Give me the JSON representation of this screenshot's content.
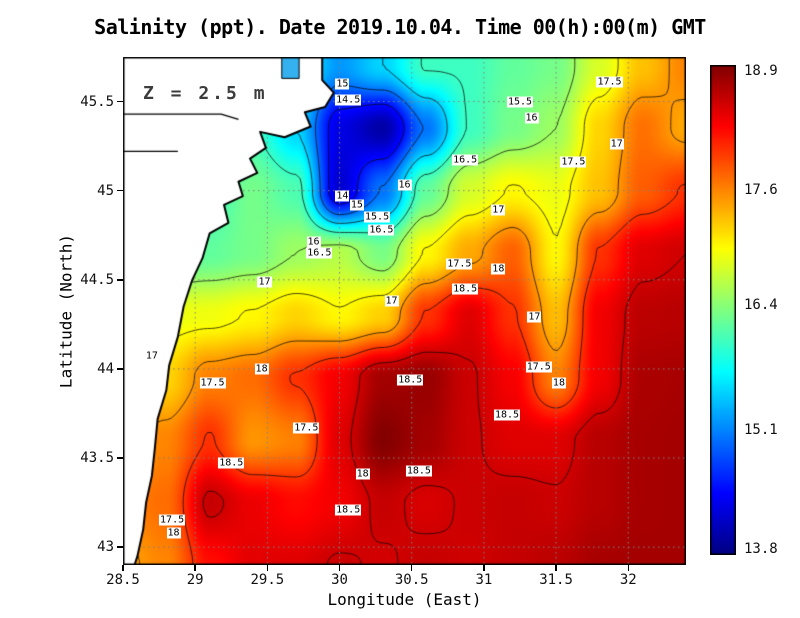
{
  "figure": {
    "title": "Salinity (ppt). Date 2019.10.04. Time 00(h):00(m) GMT",
    "annotation": "Z = 2.5 m",
    "xlabel": "Longitude (East)",
    "ylabel": "Latitude (North)"
  },
  "chart_data": {
    "type": "heatmap",
    "title": "Salinity (ppt). Date 2019.10.04. Time 00(h):00(m) GMT",
    "variable": "Salinity",
    "units": "ppt",
    "date": "2019.10.04",
    "time_gmt": "00(h):00(m)",
    "depth_label": "Z = 2.5 m",
    "xlabel": "Longitude (East)",
    "ylabel": "Latitude (North)",
    "x_range": [
      28.5,
      32.4
    ],
    "y_range": [
      42.9,
      45.75
    ],
    "x_ticks": [
      "28.5",
      "29",
      "29.5",
      "30",
      "30.5",
      "31",
      "31.5",
      "32"
    ],
    "y_ticks": [
      "43",
      "43.5",
      "44",
      "44.5",
      "45",
      "45.5"
    ],
    "grid_on": true,
    "colorbar": {
      "min": 13.8,
      "max": 18.9,
      "tick_labels": [
        "18.9",
        "17.6",
        "16.4",
        "15.1",
        "13.8"
      ],
      "colormap": "jet",
      "position": "right"
    },
    "contour_levels": [
      14,
      14.5,
      15,
      15.5,
      16,
      16.5,
      17,
      17.5,
      18,
      18.5
    ],
    "grid": {
      "lons": [
        28.5,
        28.8,
        29.1,
        29.4,
        29.7,
        30.0,
        30.3,
        30.6,
        30.9,
        31.2,
        31.5,
        31.8,
        32.1,
        32.4
      ],
      "lats": [
        42.9,
        43.25,
        43.6,
        43.95,
        44.3,
        44.65,
        45.0,
        45.35,
        45.7
      ],
      "salinity": [
        [
          17.45,
          17.6,
          18.2,
          18.4,
          18.42,
          18.52,
          18.48,
          18.55,
          18.5,
          18.55,
          18.6,
          18.7,
          18.72,
          18.72
        ],
        [
          17.6,
          17.72,
          18.55,
          18.35,
          18.22,
          18.32,
          18.55,
          18.45,
          18.52,
          18.55,
          18.52,
          18.62,
          18.7,
          18.72
        ],
        [
          17.42,
          17.6,
          18.02,
          17.52,
          17.62,
          18.42,
          18.88,
          18.72,
          18.52,
          18.42,
          18.42,
          18.62,
          18.7,
          18.72
        ],
        [
          17.02,
          17.2,
          17.62,
          17.72,
          18.02,
          18.32,
          18.72,
          18.78,
          18.52,
          18.3,
          17.62,
          18.32,
          18.68,
          18.7
        ],
        [
          16.82,
          16.9,
          16.92,
          17.02,
          17.2,
          17.02,
          17.22,
          18.02,
          18.42,
          18.02,
          17.32,
          18.32,
          18.6,
          18.62
        ],
        [
          16.02,
          16.1,
          16.2,
          16.3,
          16.5,
          16.62,
          16.32,
          17.02,
          17.42,
          17.78,
          17.02,
          18.02,
          18.42,
          18.5
        ],
        [
          15.82,
          15.9,
          16.02,
          16.3,
          16.1,
          14.2,
          15.02,
          16.2,
          16.78,
          17.02,
          16.9,
          17.3,
          17.8,
          18.02
        ],
        [
          15.5,
          15.6,
          15.8,
          16.02,
          15.5,
          14.3,
          14.0,
          15.02,
          16.02,
          16.3,
          16.5,
          17.2,
          17.7,
          17.42
        ],
        [
          15.3,
          15.4,
          15.5,
          15.6,
          15.8,
          15.2,
          15.5,
          16.02,
          16.02,
          16.2,
          16.3,
          16.8,
          17.3,
          17.6
        ]
      ]
    },
    "contour_labels": [
      [
        "15",
        30.02,
        45.6
      ],
      [
        "14.5",
        30.06,
        45.51
      ],
      [
        "17.5",
        31.87,
        45.61
      ],
      [
        "15.5",
        31.25,
        45.5
      ],
      [
        "16",
        31.33,
        45.41
      ],
      [
        "16.5",
        30.87,
        45.17
      ],
      [
        "17.5",
        31.62,
        45.16
      ],
      [
        "17",
        31.92,
        45.26
      ],
      [
        "14",
        30.02,
        44.97
      ],
      [
        "16",
        30.45,
        45.03
      ],
      [
        "15",
        30.12,
        44.92
      ],
      [
        "15.5",
        30.26,
        44.85
      ],
      [
        "16.5",
        30.29,
        44.78
      ],
      [
        "17",
        31.1,
        44.89
      ],
      [
        "16",
        29.82,
        44.71
      ],
      [
        "16.5",
        29.86,
        44.65
      ],
      [
        "17",
        29.48,
        44.49
      ],
      [
        "17.5",
        30.83,
        44.59
      ],
      [
        "18",
        31.1,
        44.56
      ],
      [
        "18.5",
        30.87,
        44.45
      ],
      [
        "17",
        30.36,
        44.38
      ],
      [
        "17",
        31.35,
        44.29
      ],
      [
        "17",
        28.7,
        44.07
      ],
      [
        "17.5",
        29.12,
        43.92
      ],
      [
        "18",
        29.46,
        44.0
      ],
      [
        "18.5",
        30.49,
        43.94
      ],
      [
        "17.5",
        31.38,
        44.01
      ],
      [
        "18",
        31.52,
        43.92
      ],
      [
        "18.5",
        31.16,
        43.74
      ],
      [
        "17.5",
        29.77,
        43.67
      ],
      [
        "18.5",
        29.25,
        43.47
      ],
      [
        "18",
        30.16,
        43.41
      ],
      [
        "18.5",
        30.55,
        43.43
      ],
      [
        "18.5",
        30.06,
        43.21
      ],
      [
        "17.5",
        28.84,
        43.15
      ],
      [
        "18",
        28.85,
        43.08
      ]
    ],
    "coastline": [
      [
        29.88,
        45.75
      ],
      [
        29.88,
        45.62
      ],
      [
        29.96,
        45.55
      ],
      [
        29.9,
        45.47
      ],
      [
        29.76,
        45.44
      ],
      [
        29.8,
        45.36
      ],
      [
        29.62,
        45.3
      ],
      [
        29.45,
        45.33
      ],
      [
        29.49,
        45.24
      ],
      [
        29.38,
        45.18
      ],
      [
        29.43,
        45.1
      ],
      [
        29.3,
        45.05
      ],
      [
        29.33,
        44.97
      ],
      [
        29.2,
        44.92
      ],
      [
        29.23,
        44.82
      ],
      [
        29.1,
        44.76
      ],
      [
        29.05,
        44.62
      ],
      [
        28.98,
        44.5
      ],
      [
        28.92,
        44.35
      ],
      [
        28.88,
        44.18
      ],
      [
        28.82,
        44.02
      ],
      [
        28.8,
        43.88
      ],
      [
        28.74,
        43.72
      ],
      [
        28.72,
        43.55
      ],
      [
        28.7,
        43.4
      ],
      [
        28.66,
        43.25
      ],
      [
        28.64,
        43.1
      ],
      [
        28.6,
        42.95
      ],
      [
        28.58,
        42.9
      ]
    ],
    "liman_lines": [
      [
        [
          28.5,
          45.43
        ],
        [
          29.18,
          45.43
        ],
        [
          29.3,
          45.4
        ]
      ],
      [
        [
          28.5,
          45.22
        ],
        [
          28.88,
          45.22
        ]
      ]
    ],
    "estuary_rect": {
      "lon_min": 29.6,
      "lon_max": 29.72,
      "lat_min": 45.63,
      "lat_max": 45.75,
      "color": "#35b1ef"
    },
    "colors": {
      "land": "#ffffff",
      "coast": "#000000",
      "gridlines": "#828282",
      "frame": "#000000",
      "contour": "#0a0a0a"
    }
  }
}
